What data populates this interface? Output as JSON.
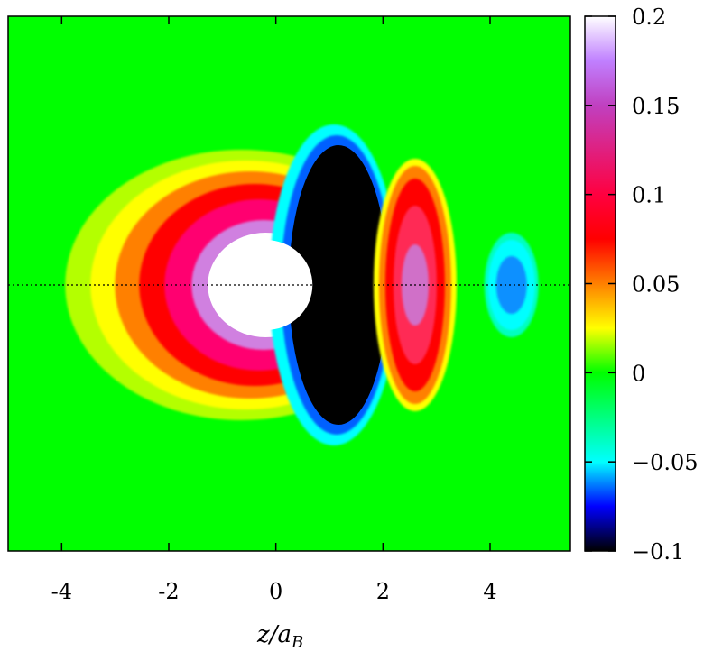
{
  "chart_data": {
    "type": "heatmap",
    "xlabel": "z/a_B",
    "xlabel_main": "z/a",
    "xlabel_sub": "B",
    "ylabel": "",
    "xlim": [
      -5,
      5.5
    ],
    "x_ticks": [
      -4,
      -2,
      0,
      2,
      4
    ],
    "x_tick_labels": [
      "-4",
      "-2",
      "0",
      "2",
      "4"
    ],
    "colorbar": {
      "min": -0.1,
      "max": 0.2,
      "ticks": [
        -0.1,
        -0.05,
        0,
        0.05,
        0.1,
        0.15,
        0.2
      ],
      "tick_labels": [
        "−0.1",
        "−0.05",
        "0",
        "0.05",
        "0.1",
        "0.15",
        "0.2"
      ],
      "palette": [
        {
          "v": -0.1,
          "color": "#000000"
        },
        {
          "v": -0.075,
          "color": "#0000ff"
        },
        {
          "v": -0.05,
          "color": "#00ffff"
        },
        {
          "v": -0.025,
          "color": "#00ff80"
        },
        {
          "v": 0.0,
          "color": "#00ff00"
        },
        {
          "v": 0.025,
          "color": "#ffff00"
        },
        {
          "v": 0.05,
          "color": "#ff8000"
        },
        {
          "v": 0.075,
          "color": "#ff0000"
        },
        {
          "v": 0.1,
          "color": "#ff0040"
        },
        {
          "v": 0.15,
          "color": "#c040c0"
        },
        {
          "v": 0.175,
          "color": "#c080ff"
        },
        {
          "v": 0.2,
          "color": "#ffffff"
        }
      ]
    },
    "features": [
      {
        "name": "positive lobe",
        "center_z": -0.9,
        "peak": 0.2
      },
      {
        "name": "negative lobe",
        "center_z": 1.0,
        "peak": -0.1
      },
      {
        "name": "positive lobe",
        "center_z": 2.6,
        "peak": 0.13
      },
      {
        "name": "negative lobe",
        "center_z": 4.4,
        "peak": -0.055
      }
    ],
    "reference_line": "y = 0 (dotted)",
    "grid": false,
    "legend": "colorbar right"
  }
}
